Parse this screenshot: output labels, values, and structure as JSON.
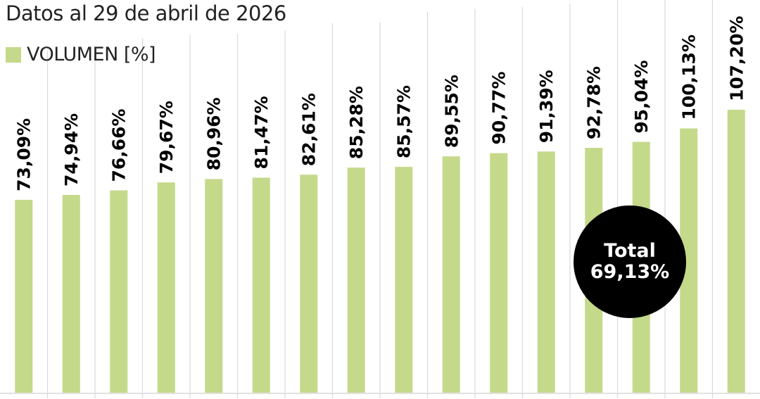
{
  "chart_data": {
    "type": "bar",
    "subtitle": "Datos al 29 de abril de 2026",
    "series": [
      {
        "name": "VOLUMEN [%]",
        "values": [
          73.09,
          74.94,
          76.66,
          79.67,
          80.96,
          81.47,
          82.61,
          85.28,
          85.57,
          89.55,
          90.77,
          91.39,
          92.78,
          95.04,
          100.13,
          107.2
        ]
      }
    ],
    "data_labels": [
      "73,09%",
      "74,94%",
      "76,66%",
      "79,67%",
      "80,96%",
      "81,47%",
      "82,61%",
      "85,28%",
      "85,57%",
      "89,55%",
      "90,77%",
      "91,39%",
      "92,78%",
      "95,04%",
      "100,13%",
      "107,20%"
    ],
    "ylim": [
      0,
      108
    ],
    "grid": "vertical separators between bars",
    "legend_position": "top-left",
    "colors": {
      "bar": "#c5d98b",
      "grid": "#d9d9d9",
      "label": "#000000"
    }
  },
  "total_badge": {
    "label": "Total",
    "value": "69,13%"
  }
}
